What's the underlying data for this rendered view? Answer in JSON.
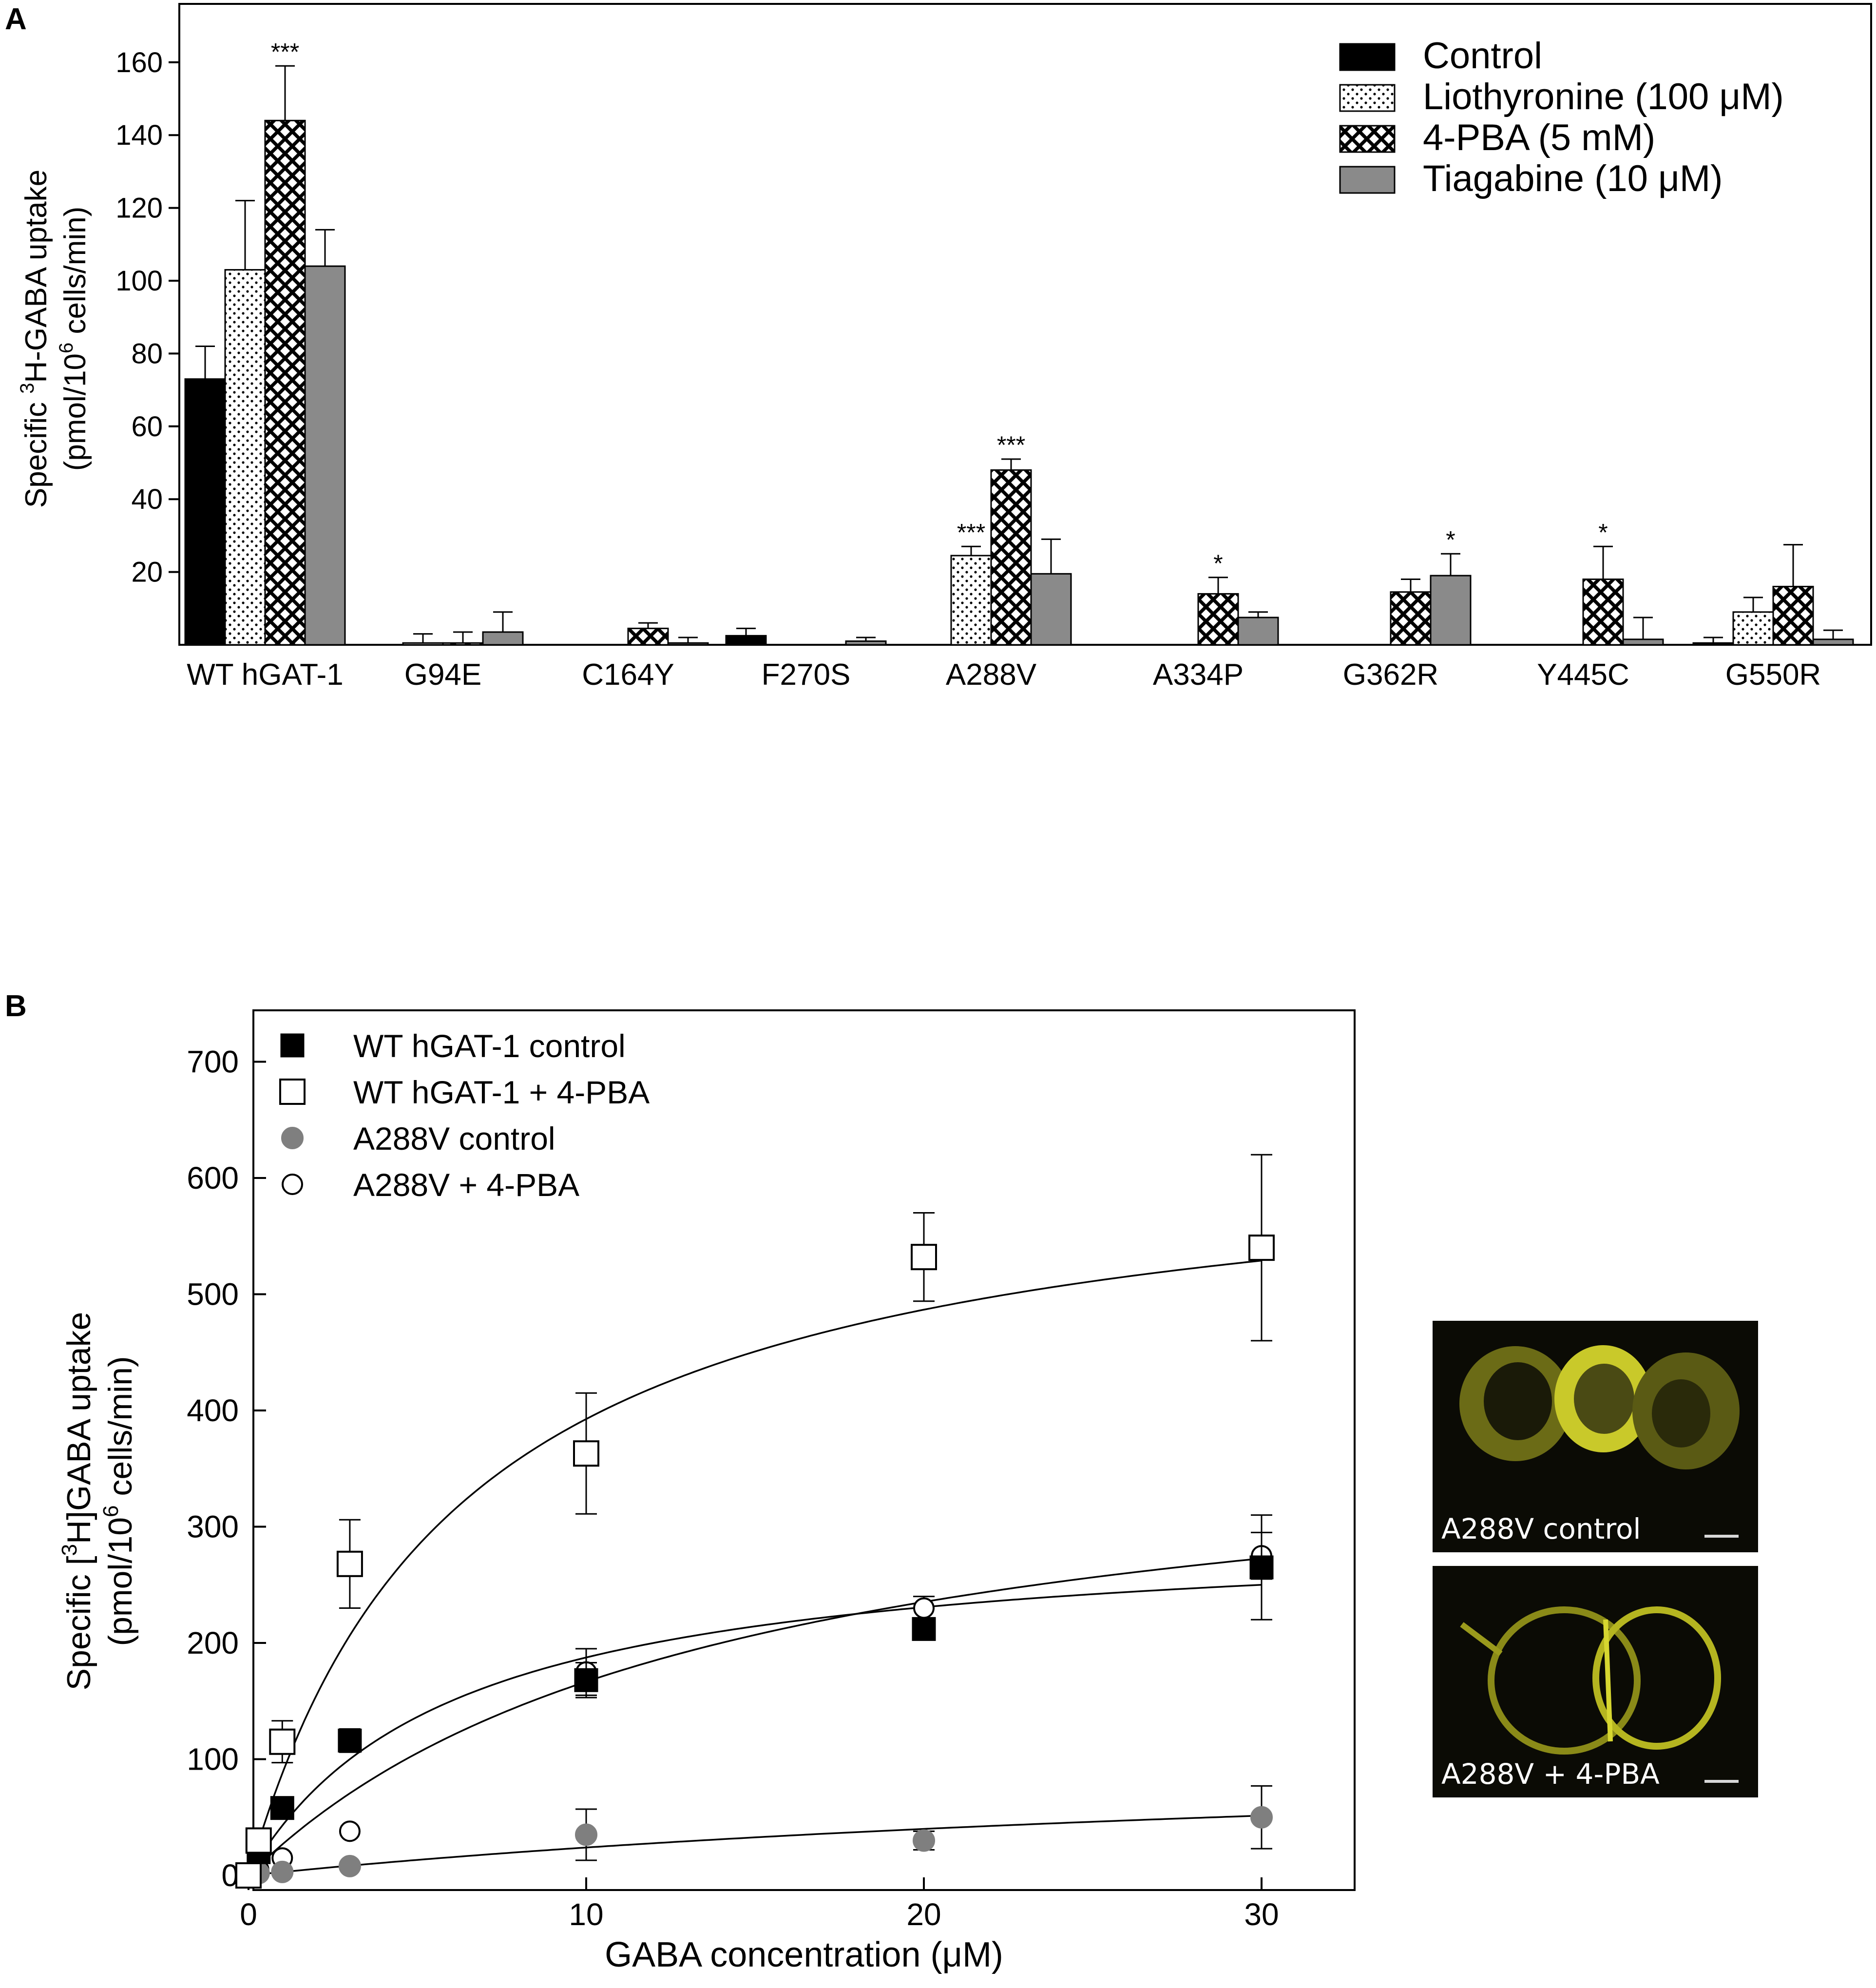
{
  "panel_a": {
    "label": "A",
    "ylabel_line1_pre": "Specific ",
    "ylabel_line1_sup": "3",
    "ylabel_line1_post": "H-GABA uptake",
    "ylabel_line2_pre": "(pmol/10",
    "ylabel_line2_sup": "6",
    "ylabel_line2_post": " cells/min)"
  },
  "panel_b": {
    "label": "B",
    "ylabel_line1_pre": "Specific [",
    "ylabel_line1_sup": "3",
    "ylabel_line1_post": "H]GABA uptake",
    "ylabel_line2_pre": "(pmol/10",
    "ylabel_line2_sup": "6",
    "ylabel_line2_post": " cells/min)",
    "xlabel": "GABA concentration (μM)"
  },
  "images": {
    "top_label": "A288V control",
    "bottom_label": "A288V + 4-PBA"
  },
  "chart_data": [
    {
      "type": "bar",
      "categories": [
        "WT hGAT-1",
        "G94E",
        "C164Y",
        "F270S",
        "A288V",
        "A334P",
        "G362R",
        "Y445C",
        "G550R"
      ],
      "ylim": [
        0,
        175
      ],
      "yticks": [
        20,
        40,
        60,
        80,
        100,
        120,
        140,
        160
      ],
      "xlabel": "",
      "legend_position": "top-right",
      "series": [
        {
          "name": "Control",
          "pattern": "solid-black",
          "color": "#000000",
          "values": [
            73,
            0,
            0,
            2.5,
            0,
            0,
            0,
            0,
            0.5
          ],
          "errors": [
            9,
            0,
            0,
            2,
            0,
            0,
            0,
            0,
            1.5
          ],
          "annotations": [
            "",
            "",
            "",
            "",
            "",
            "",
            "",
            "",
            ""
          ]
        },
        {
          "name": "Liothyronine (100 μM)",
          "pattern": "dots",
          "color": "#ffffff",
          "values": [
            103,
            0.5,
            0,
            0,
            24.5,
            0,
            0,
            0,
            9
          ],
          "errors": [
            19,
            2.5,
            0,
            0,
            2.5,
            0,
            0,
            0,
            4
          ],
          "annotations": [
            "",
            "",
            "",
            "",
            "***",
            "",
            "",
            "",
            ""
          ]
        },
        {
          "name": "4-PBA (5 mM)",
          "pattern": "crosshatch",
          "color": "#ffffff",
          "values": [
            144,
            0.5,
            4.5,
            0,
            48,
            14,
            14.5,
            18,
            16
          ],
          "errors": [
            15,
            3,
            1.5,
            0,
            3,
            4.5,
            3.5,
            9,
            11.5
          ],
          "annotations": [
            "***",
            "",
            "",
            "",
            "***",
            "*",
            "",
            "*",
            ""
          ]
        },
        {
          "name": "Tiagabine (10 μM)",
          "pattern": "solid-gray",
          "color": "#8a8a8a",
          "values": [
            104,
            3.5,
            0.5,
            1,
            19.5,
            7.5,
            19,
            1.5,
            1.5
          ],
          "errors": [
            10,
            5.5,
            1.5,
            1,
            9.5,
            1.5,
            6,
            6,
            2.5
          ],
          "annotations": [
            "",
            "",
            "",
            "",
            "",
            "",
            "*",
            "",
            ""
          ]
        }
      ]
    },
    {
      "type": "scatter",
      "xlim": [
        0,
        30
      ],
      "xticks": [
        0,
        10,
        20,
        30
      ],
      "ylim": [
        0,
        700
      ],
      "yticks": [
        0,
        100,
        200,
        300,
        400,
        500,
        600,
        700
      ],
      "legend_position": "top-left",
      "series": [
        {
          "name": "WT hGAT-1 control",
          "marker": "filled-square",
          "color": "#000000",
          "x": [
            0,
            0.3,
            1,
            3,
            10,
            20,
            30
          ],
          "y": [
            0,
            20,
            58,
            116,
            168,
            212,
            265
          ],
          "errors": [
            0,
            5,
            8,
            10,
            15,
            8,
            45
          ],
          "fit": {
            "vmax": 400,
            "km": 14
          }
        },
        {
          "name": "WT hGAT-1 + 4-PBA",
          "marker": "open-square",
          "color": "#000000",
          "x": [
            0,
            0.3,
            1,
            3,
            10,
            20,
            30
          ],
          "y": [
            0,
            30,
            115,
            268,
            363,
            532,
            540
          ],
          "errors": [
            0,
            10,
            18,
            38,
            52,
            38,
            80
          ],
          "fit": {
            "vmax": 640,
            "km": 6.3
          }
        },
        {
          "name": "A288V control",
          "marker": "filled-circle",
          "color": "#7f7f7f",
          "x": [
            0,
            0.3,
            1,
            3,
            10,
            20,
            30
          ],
          "y": [
            0,
            2,
            3,
            8,
            35,
            30,
            50
          ],
          "errors": [
            0,
            0,
            0,
            0,
            22,
            8,
            27
          ],
          "fit": {
            "vmax": 120,
            "km": 40
          }
        },
        {
          "name": "A288V + 4-PBA",
          "marker": "open-circle",
          "color": "#000000",
          "x": [
            0,
            0.3,
            1,
            3,
            10,
            20,
            30
          ],
          "y": [
            0,
            5,
            15,
            38,
            175,
            230,
            275
          ],
          "errors": [
            0,
            0,
            0,
            0,
            20,
            10,
            20
          ],
          "fit": {
            "vmax": 300,
            "km": 6
          }
        }
      ]
    }
  ]
}
